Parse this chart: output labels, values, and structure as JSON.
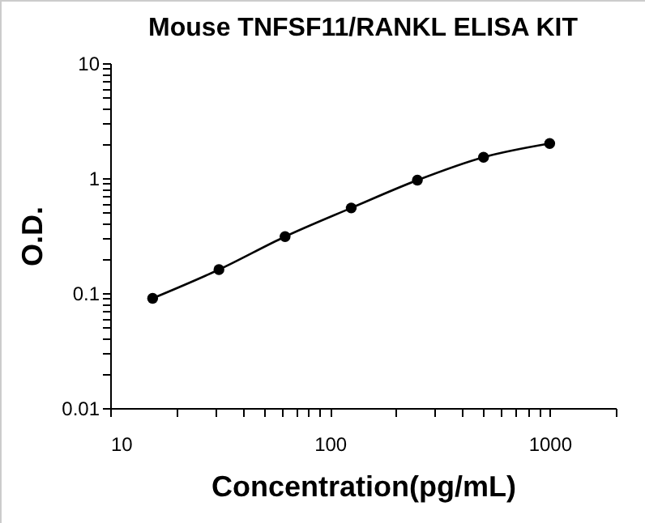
{
  "chart_data": {
    "type": "line",
    "title": "Mouse TNFSF11/RANKL ELISA KIT",
    "xlabel": "Concentration(pg/mL)",
    "ylabel": "O.D.",
    "x": [
      15.6,
      31.25,
      62.5,
      125,
      250,
      500,
      1000
    ],
    "series": [
      {
        "color": "#000000",
        "values": [
          0.09,
          0.16,
          0.31,
          0.55,
          0.96,
          1.52,
          2.0
        ]
      }
    ],
    "log": "xy",
    "marker": "circle",
    "line_style": "solid",
    "grid": false,
    "legend": false,
    "xlim": [
      10,
      2000
    ],
    "ylim": [
      0.01,
      10
    ],
    "xticks": [
      10,
      {
        "value": 20,
        "label": null
      },
      {
        "value": 30,
        "label": null
      },
      {
        "value": 40,
        "label": null
      },
      {
        "value": 50,
        "label": null
      },
      {
        "value": 60,
        "label": null
      },
      {
        "value": 70,
        "label": null
      },
      {
        "value": 80,
        "label": null
      },
      {
        "value": 90,
        "label": null
      },
      100,
      {
        "value": 200,
        "label": null
      },
      {
        "value": 300,
        "label": null
      },
      {
        "value": 400,
        "label": null
      },
      {
        "value": 500,
        "label": null
      },
      {
        "value": 600,
        "label": null
      },
      {
        "value": 700,
        "label": null
      },
      {
        "value": 800,
        "label": null
      },
      {
        "value": 900,
        "label": null
      },
      1000,
      {
        "value": 2000,
        "label": null
      }
    ],
    "yticks": [
      0.01,
      {
        "value": 0.02,
        "label": null
      },
      {
        "value": 0.03,
        "label": null
      },
      {
        "value": 0.04,
        "label": null
      },
      {
        "value": 0.05,
        "label": null
      },
      {
        "value": 0.06,
        "label": null
      },
      {
        "value": 0.07,
        "label": null
      },
      {
        "value": 0.08,
        "label": null
      },
      {
        "value": 0.09,
        "label": null
      },
      0.1,
      {
        "value": 0.2,
        "label": null
      },
      {
        "value": 0.3,
        "label": null
      },
      {
        "value": 0.4,
        "label": null
      },
      {
        "value": 0.5,
        "label": null
      },
      {
        "value": 0.6,
        "label": null
      },
      {
        "value": 0.7,
        "label": null
      },
      {
        "value": 0.8,
        "label": null
      },
      {
        "value": 0.9,
        "label": null
      },
      1,
      {
        "value": 2,
        "label": null
      },
      {
        "value": 3,
        "label": null
      },
      {
        "value": 4,
        "label": null
      },
      {
        "value": 5,
        "label": null
      },
      {
        "value": 6,
        "label": null
      },
      {
        "value": 7,
        "label": null
      },
      {
        "value": 8,
        "label": null
      },
      {
        "value": 9,
        "label": null
      },
      10
    ]
  }
}
